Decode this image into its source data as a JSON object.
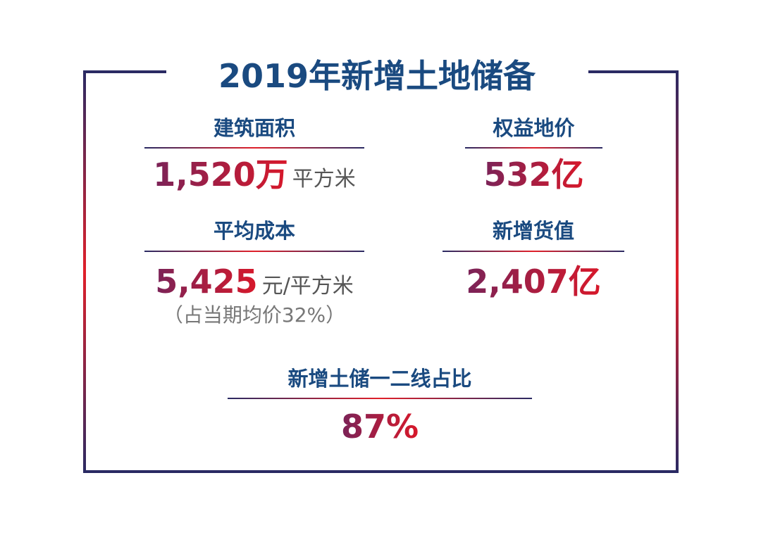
{
  "title": "2019年新增土地储备",
  "colors": {
    "frame_dark": "#2a2a63",
    "frame_accent": "#e0202a",
    "label": "#1a4a80",
    "value_start": "#7a2358",
    "value_end": "#d8182a"
  },
  "stats": {
    "gfa": {
      "label": "建筑面积",
      "value": "1,520万",
      "unit": "平方米"
    },
    "land_price": {
      "label": "权益地价",
      "value": "532亿"
    },
    "avg_cost": {
      "label": "平均成本",
      "value": "5,425",
      "unit": "元/平方米",
      "note": "（占当期均价32%）"
    },
    "new_value": {
      "label": "新增货值",
      "value": "2,407亿"
    },
    "tier_ratio": {
      "label": "新增土储一二线占比",
      "value": "87%"
    }
  }
}
